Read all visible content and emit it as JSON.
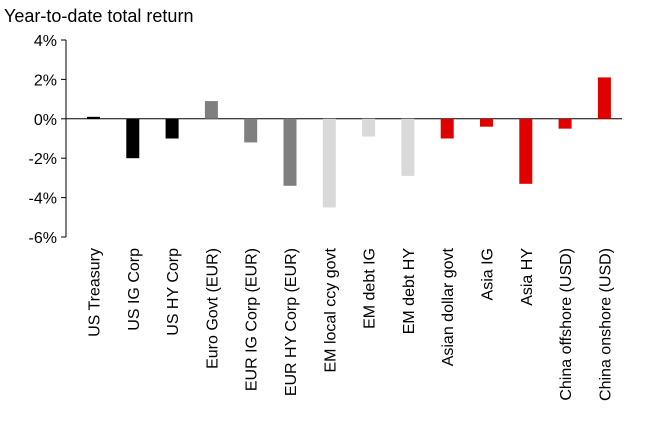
{
  "chart_data": {
    "type": "bar",
    "title": "Year-to-date total return",
    "xlabel": "",
    "ylabel": "",
    "ylim": [
      -6,
      4
    ],
    "yticks": [
      4,
      2,
      0,
      -2,
      -4,
      -6
    ],
    "ytick_labels": [
      "4%",
      "2%",
      "0%",
      "-2%",
      "-4%",
      "-6%"
    ],
    "grid": false,
    "legend": "none",
    "categories": [
      "US Treasury",
      "US IG Corp",
      "US HY Corp",
      "Euro Govt (EUR)",
      "EUR IG Corp (EUR)",
      "EUR HY Corp (EUR)",
      "EM local ccy govt",
      "EM debt IG",
      "EM debt HY",
      "Asian dollar govt",
      "Asia IG",
      "Asia HY",
      "China offshore (USD)",
      "China onshore (USD)"
    ],
    "values": [
      0.1,
      -2.0,
      -1.0,
      0.9,
      -1.2,
      -3.4,
      -4.5,
      -0.9,
      -2.9,
      -1.0,
      -0.4,
      -3.3,
      -0.5,
      2.1
    ],
    "colors": [
      "#000000",
      "#000000",
      "#000000",
      "#7f7f7f",
      "#7f7f7f",
      "#7f7f7f",
      "#d9d9d9",
      "#d9d9d9",
      "#d9d9d9",
      "#e00000",
      "#e00000",
      "#e00000",
      "#e00000",
      "#e00000"
    ]
  }
}
